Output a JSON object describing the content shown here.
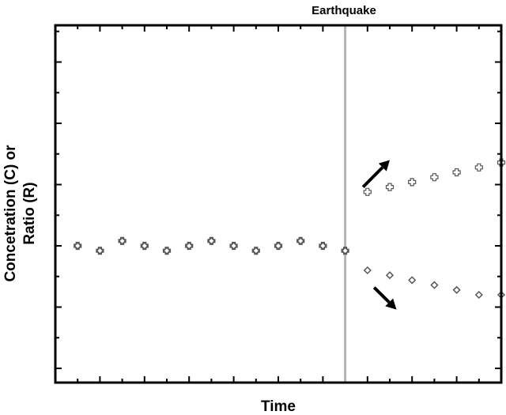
{
  "chart_data": {
    "type": "scatter",
    "title": "",
    "annotation": "Earthquake",
    "xlabel": "Time",
    "ylabel_line1": "Concetration (C) or",
    "ylabel_line2": "Ratio (R)",
    "xlim": [
      0,
      20
    ],
    "ylim": [
      -3.5,
      5
    ],
    "event_x": 13,
    "grid": false,
    "tick_labels_shown": false,
    "series": [
      {
        "marker": "plus",
        "x": [
          1,
          2,
          3,
          4,
          5,
          6,
          7,
          8,
          9,
          10,
          11,
          12,
          13,
          14,
          15,
          16,
          17,
          18,
          19,
          20
        ],
        "y": [
          0,
          -0.2,
          0.2,
          0,
          -0.2,
          0,
          0.2,
          0,
          -0.2,
          0,
          0.2,
          0,
          -0.2,
          2.2,
          2.4,
          2.6,
          2.8,
          3.0,
          3.2,
          3.4
        ]
      },
      {
        "marker": "diamond",
        "x": [
          1,
          2,
          3,
          4,
          5,
          6,
          7,
          8,
          9,
          10,
          11,
          12,
          13,
          14,
          15,
          16,
          17,
          18,
          19,
          20
        ],
        "y": [
          0,
          -0.2,
          0.2,
          0,
          -0.2,
          0,
          0.2,
          0,
          -0.2,
          0,
          0.2,
          0,
          -0.2,
          -1.0,
          -1.2,
          -1.4,
          -1.6,
          -1.8,
          -2.0,
          -2.0
        ]
      }
    ],
    "trend_arrows": [
      "up",
      "down"
    ],
    "colors": {
      "axis": "#000000",
      "marker": "#555555",
      "event_line": "#b3b3b3",
      "arrow": "#000000"
    }
  }
}
